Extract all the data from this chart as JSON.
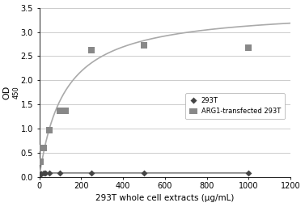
{
  "title": "",
  "xlabel": "293T whole cell extracts (μg/mL)",
  "ylabel": "OD",
  "ylabel_sub": "450",
  "xlim": [
    0,
    1200
  ],
  "ylim": [
    0,
    3.5
  ],
  "xticks": [
    0,
    200,
    400,
    600,
    800,
    1000,
    1200
  ],
  "yticks": [
    0,
    0.5,
    1,
    1.5,
    2,
    2.5,
    3,
    3.5
  ],
  "293T_x": [
    5,
    10,
    20,
    30,
    50,
    100,
    250,
    500,
    1000
  ],
  "293T_y": [
    0.07,
    0.08,
    0.09,
    0.09,
    0.09,
    0.09,
    0.09,
    0.09,
    0.09
  ],
  "ARG1_scatter_x": [
    5,
    10,
    20,
    50,
    100,
    125,
    250,
    500,
    1000
  ],
  "ARG1_scatter_y": [
    0.33,
    0.6,
    0.6,
    0.97,
    1.38,
    1.38,
    2.62,
    2.72,
    2.67
  ],
  "curve_color": "#aaaaaa",
  "scatter_293T_color": "#444444",
  "scatter_ARG1_color": "#888888",
  "bg_color": "#ffffff",
  "grid_color": "#cccccc",
  "Vmax": 3.5,
  "Km": 120
}
